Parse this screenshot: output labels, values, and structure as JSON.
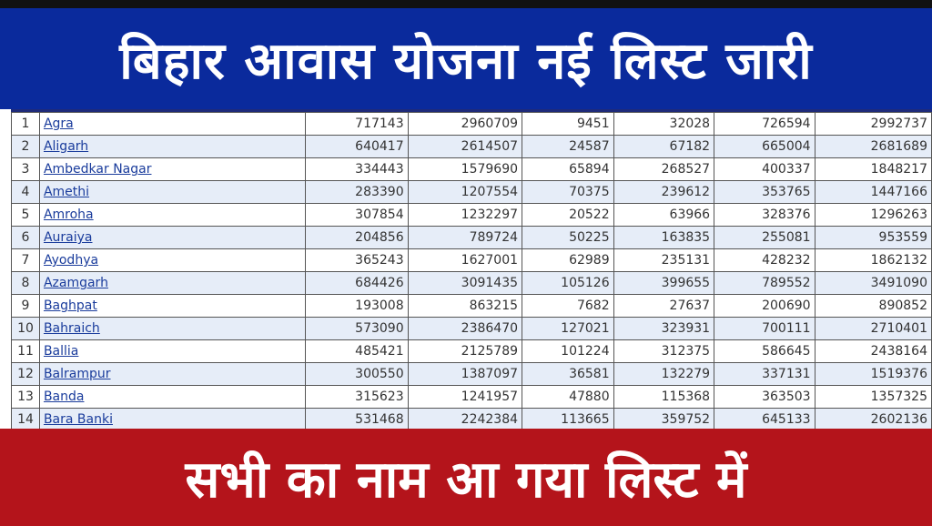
{
  "header": {
    "title": "बिहार आवास योजना नई लिस्ट जारी"
  },
  "footer": {
    "title": "सभी का नाम आ गया लिस्ट में"
  },
  "colors": {
    "top_banner": "#0a2a9c",
    "bottom_banner": "#b4141b",
    "link": "#1a3c9c",
    "row_alt": "#e6edf8"
  },
  "table": {
    "rows": [
      [
        "1",
        "Agra",
        "717143",
        "2960709",
        "9451",
        "32028",
        "726594",
        "2992737"
      ],
      [
        "2",
        "Aligarh",
        "640417",
        "2614507",
        "24587",
        "67182",
        "665004",
        "2681689"
      ],
      [
        "3",
        "Ambedkar Nagar",
        "334443",
        "1579690",
        "65894",
        "268527",
        "400337",
        "1848217"
      ],
      [
        "4",
        "Amethi",
        "283390",
        "1207554",
        "70375",
        "239612",
        "353765",
        "1447166"
      ],
      [
        "5",
        "Amroha",
        "307854",
        "1232297",
        "20522",
        "63966",
        "328376",
        "1296263"
      ],
      [
        "6",
        "Auraiya",
        "204856",
        "789724",
        "50225",
        "163835",
        "255081",
        "953559"
      ],
      [
        "7",
        "Ayodhya",
        "365243",
        "1627001",
        "62989",
        "235131",
        "428232",
        "1862132"
      ],
      [
        "8",
        "Azamgarh",
        "684426",
        "3091435",
        "105126",
        "399655",
        "789552",
        "3491090"
      ],
      [
        "9",
        "Baghpat",
        "193008",
        "863215",
        "7682",
        "27637",
        "200690",
        "890852"
      ],
      [
        "10",
        "Bahraich",
        "573090",
        "2386470",
        "127021",
        "323931",
        "700111",
        "2710401"
      ],
      [
        "11",
        "Ballia",
        "485421",
        "2125789",
        "101224",
        "312375",
        "586645",
        "2438164"
      ],
      [
        "12",
        "Balrampur",
        "300550",
        "1387097",
        "36581",
        "132279",
        "337131",
        "1519376"
      ],
      [
        "13",
        "Banda",
        "315623",
        "1241957",
        "47880",
        "115368",
        "363503",
        "1357325"
      ],
      [
        "14",
        "Bara Banki",
        "531468",
        "2242384",
        "113665",
        "359752",
        "645133",
        "2602136"
      ]
    ]
  }
}
